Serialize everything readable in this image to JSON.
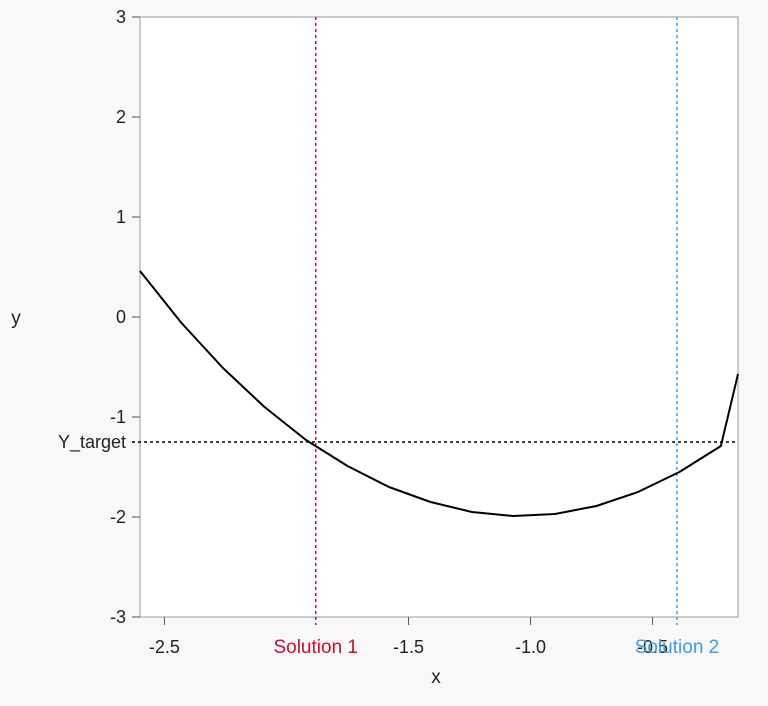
{
  "chart_data": {
    "type": "line",
    "xlabel": "x",
    "ylabel": "y",
    "xlim": [
      -2.6,
      -0.15
    ],
    "ylim": [
      -3,
      3
    ],
    "xticks": [
      -2.5,
      -1.5,
      -1.0,
      -0.5
    ],
    "xtick_labels": [
      "-2.5",
      "-1.5",
      "-1.0",
      "-0.5"
    ],
    "yticks": [
      3,
      2,
      1,
      0,
      -1,
      -2,
      -3
    ],
    "ytick_labels": [
      "3",
      "2",
      "1",
      "0",
      "-1",
      "-2",
      "-3"
    ],
    "grid": false,
    "series": [
      {
        "color": "#000000",
        "x": [
          -2.6,
          -2.43,
          -2.26,
          -2.09,
          -1.92,
          -1.75,
          -1.58,
          -1.41,
          -1.24,
          -1.07,
          -0.9,
          -0.73,
          -0.56,
          -0.39,
          -0.22,
          -0.15
        ],
        "y": [
          0.46,
          -0.06,
          -0.51,
          -0.9,
          -1.23,
          -1.49,
          -1.7,
          -1.85,
          -1.95,
          -1.99,
          -1.97,
          -1.89,
          -1.75,
          -1.55,
          -1.29,
          -0.57
        ]
      }
    ],
    "hline": {
      "y": -1.25,
      "label": "Y_target",
      "color": "#000000",
      "style": "dashed"
    },
    "vlines": [
      {
        "x": -1.88,
        "label": "Solution 1",
        "color": "#c8102e",
        "style": "dashed"
      },
      {
        "x": -0.4,
        "label": "Solution 2",
        "color": "#3d9be9",
        "style": "dashed"
      }
    ]
  }
}
